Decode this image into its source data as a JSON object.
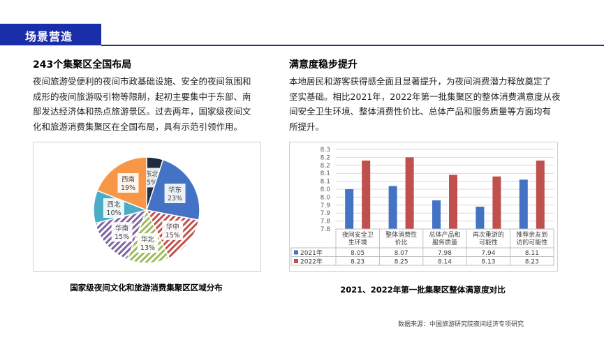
{
  "header": {
    "title": "场景营造"
  },
  "left": {
    "title": "243个集聚区全国布局",
    "paragraph": [
      "夜间旅游受便利的夜间市政基础设施、安全的夜间氛围和",
      "成形的夜间旅游吸引物等限制，起初主要集中于东部、南",
      "部发达经济体和热点旅游景区。过去两年，国家级夜间文",
      "化和旅游消费集聚区在全国布局，具有示范引领作用。"
    ],
    "caption": "国家级夜间文化和旅游消费集聚区区域分布"
  },
  "right": {
    "title": "满意度稳步提升",
    "paragraph": [
      "本地居民和游客获得感全面且显著提升，为夜间消费潜力释放奠定了",
      "坚实基础。相比2021年，2022年第一批集聚区的整体消费满意度从夜",
      "间安全卫生环境、整体消费性价比、总体产品和服务质量等方面均有",
      "所提升。"
    ],
    "caption": "2021、2022年第一批集聚区整体满意度对比"
  },
  "source": "数据来源：中国旅游研究院夜间经济专项研究",
  "colors": {
    "accent": "#1b2eaa"
  },
  "chart_data": [
    {
      "type": "pie",
      "slices": [
        {
          "label": "东北",
          "percent_label": "5%",
          "value": 5,
          "color": "#1f2b3f",
          "pattern": "solid"
        },
        {
          "label": "华东",
          "percent_label": "23%",
          "value": 23,
          "color": "#4472c4",
          "pattern": "solid"
        },
        {
          "label": "华中",
          "percent_label": "15%",
          "value": 15,
          "color": "#c0504d",
          "pattern": "hatch"
        },
        {
          "label": "华北",
          "percent_label": "13%",
          "value": 13,
          "color": "#9bbb59",
          "pattern": "hatch"
        },
        {
          "label": "华南",
          "percent_label": "15%",
          "value": 15,
          "color": "#8064a2",
          "pattern": "hatch"
        },
        {
          "label": "西北",
          "percent_label": "10%",
          "value": 10,
          "color": "#4bacc6",
          "pattern": "solid"
        },
        {
          "label": "西南",
          "percent_label": "19%",
          "value": 19,
          "color": "#f79646",
          "pattern": "solid"
        }
      ]
    },
    {
      "type": "bar",
      "categories": [
        [
          "夜间安全卫",
          "生环境"
        ],
        [
          "整体消费性",
          "价比"
        ],
        [
          "总体产品和",
          "服务质量"
        ],
        [
          "再次重游的",
          "可能性"
        ],
        [
          "推荐亲友到",
          "访的可能性"
        ]
      ],
      "series": [
        {
          "name": "2021年",
          "values": [
            8.05,
            8.07,
            7.98,
            7.94,
            8.11
          ],
          "labels": [
            "8.05",
            "8.07",
            "7.98",
            "7.94",
            "8.11"
          ],
          "color": "#4472c4"
        },
        {
          "name": "2022年",
          "values": [
            8.23,
            8.25,
            8.14,
            8.13,
            8.23
          ],
          "labels": [
            "8.23",
            "8.25",
            "8.14",
            "8.13",
            "8.23"
          ],
          "color": "#c0504d"
        }
      ],
      "ylim": [
        7.8,
        8.3
      ],
      "yticks": [
        "8.3",
        "8.2",
        "8.2",
        "8.1",
        "8.1",
        "8.0",
        "8.0",
        "7.9",
        "7.9",
        "7.8",
        "7.8"
      ],
      "grid": true,
      "legend": "bottom-table"
    }
  ]
}
